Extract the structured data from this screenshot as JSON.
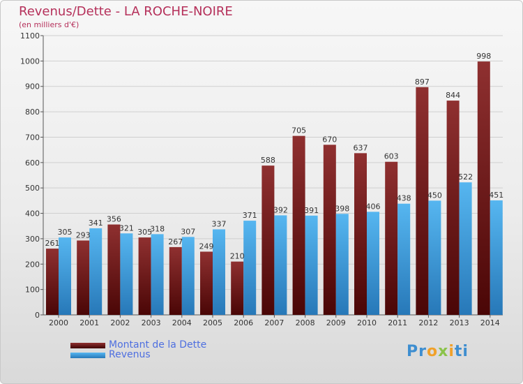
{
  "chart_data": {
    "type": "bar",
    "title": "Revenus/Dette - LA ROCHE-NOIRE",
    "subtitle": "(en milliers d'€)",
    "xlabel": "",
    "ylabel": "",
    "ylim": [
      0,
      1100
    ],
    "yticks": [
      "0",
      "100",
      "200",
      "300",
      "400",
      "500",
      "600",
      "700",
      "800",
      "900",
      "1000",
      "1100"
    ],
    "grid": true,
    "categories": [
      "2000",
      "2001",
      "2002",
      "2003",
      "2004",
      "2005",
      "2006",
      "2007",
      "2008",
      "2009",
      "2010",
      "2011",
      "2012",
      "2013",
      "2014"
    ],
    "series": [
      {
        "name": "Montant de la Dette",
        "color": "#7a1f1f",
        "values": [
          261,
          293,
          356,
          305,
          267,
          249,
          210,
          588,
          705,
          670,
          637,
          603,
          897,
          844,
          998
        ],
        "labels": [
          "261",
          "293",
          "356",
          "305",
          "267",
          "249",
          "210",
          "588",
          "705",
          "670",
          "637",
          "603",
          "897",
          "844",
          "998"
        ]
      },
      {
        "name": "Revenus",
        "color": "#3a9de0",
        "values": [
          305,
          341,
          321,
          318,
          307,
          337,
          371,
          392,
          391,
          398,
          406,
          438,
          450,
          522,
          451
        ],
        "labels": [
          "305",
          "341",
          "321",
          "318",
          "307",
          "337",
          "371",
          "392",
          "391",
          "398",
          "406",
          "438",
          "450",
          "522",
          "451"
        ]
      }
    ],
    "legend": [
      "Montant de la Dette",
      "Revenus"
    ],
    "legend_position": "bottom-left"
  },
  "branding": {
    "logo_parts": [
      "Pr",
      "o",
      "x",
      "i",
      "ti"
    ]
  }
}
